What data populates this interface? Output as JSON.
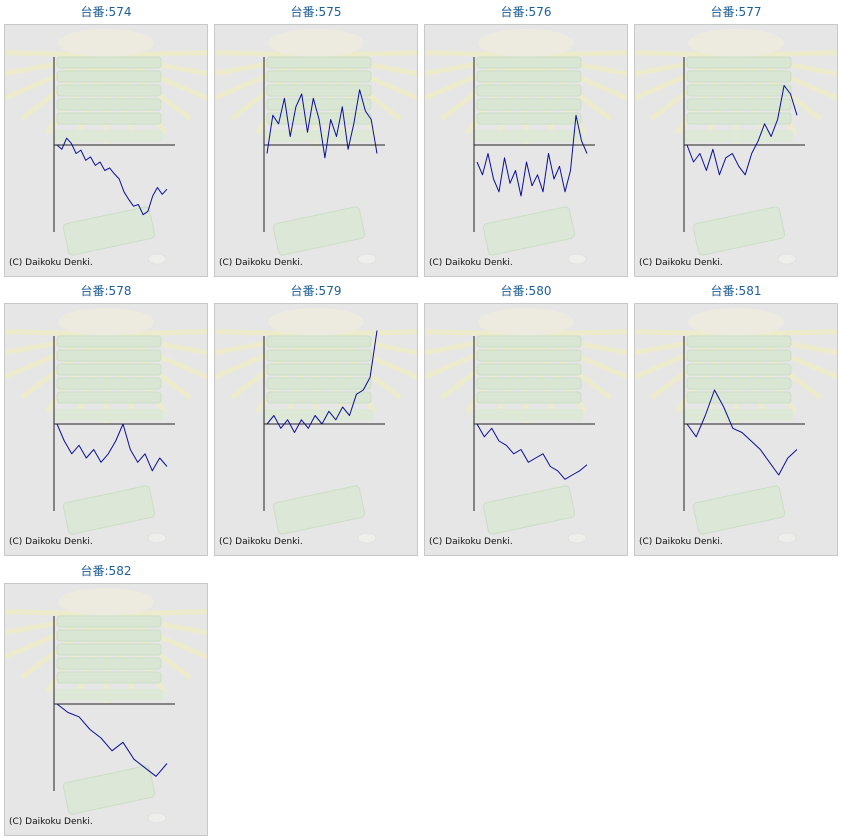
{
  "copyright": "(C) Daikoku Denki.",
  "colors": {
    "line": "#0a0f9c",
    "axis": "#222222",
    "title": "#1f5f99",
    "panel_bg": "#e6e6e6"
  },
  "chart_data": [
    {
      "type": "line",
      "title": "台番:574",
      "values": [
        0,
        -0.05,
        0.08,
        0.02,
        -0.1,
        -0.06,
        -0.18,
        -0.14,
        -0.24,
        -0.2,
        -0.3,
        -0.27,
        -0.34,
        -0.4,
        -0.55,
        -0.64,
        -0.72,
        -0.7,
        -0.82,
        -0.78,
        -0.6,
        -0.5,
        -0.58,
        -0.52
      ]
    },
    {
      "type": "line",
      "title": "台番:575",
      "values": [
        -0.1,
        0.35,
        0.25,
        0.55,
        0.1,
        0.45,
        0.6,
        0.15,
        0.55,
        0.3,
        -0.15,
        0.3,
        0.1,
        0.45,
        -0.05,
        0.25,
        0.65,
        0.4,
        0.3,
        -0.1
      ]
    },
    {
      "type": "line",
      "title": "台番:576",
      "values": [
        -0.2,
        -0.35,
        -0.1,
        -0.4,
        -0.55,
        -0.15,
        -0.45,
        -0.3,
        -0.6,
        -0.2,
        -0.48,
        -0.35,
        -0.55,
        -0.1,
        -0.4,
        -0.25,
        -0.55,
        -0.3,
        0.35,
        0.05,
        -0.1
      ]
    },
    {
      "type": "line",
      "title": "台番:577",
      "values": [
        0.0,
        -0.2,
        -0.1,
        -0.3,
        -0.05,
        -0.35,
        -0.15,
        -0.1,
        -0.25,
        -0.35,
        -0.1,
        0.05,
        0.25,
        0.1,
        0.3,
        0.7,
        0.6,
        0.35
      ]
    },
    {
      "type": "line",
      "title": "台番:578",
      "values": [
        0.0,
        -0.2,
        -0.35,
        -0.25,
        -0.4,
        -0.3,
        -0.45,
        -0.35,
        -0.2,
        0.0,
        -0.3,
        -0.45,
        -0.35,
        -0.55,
        -0.4,
        -0.5
      ]
    },
    {
      "type": "line",
      "title": "台番:579",
      "values": [
        0.0,
        0.1,
        -0.05,
        0.05,
        -0.1,
        0.05,
        -0.05,
        0.1,
        0.0,
        0.15,
        0.05,
        0.2,
        0.1,
        0.35,
        0.4,
        0.55,
        1.1
      ]
    },
    {
      "type": "line",
      "title": "台番:580",
      "values": [
        0.0,
        -0.15,
        -0.05,
        -0.2,
        -0.25,
        -0.35,
        -0.3,
        -0.45,
        -0.4,
        -0.35,
        -0.5,
        -0.55,
        -0.65,
        -0.6,
        -0.55,
        -0.48
      ]
    },
    {
      "type": "line",
      "title": "台番:581",
      "values": [
        0.0,
        -0.15,
        0.1,
        0.4,
        0.2,
        -0.05,
        -0.1,
        -0.2,
        -0.3,
        -0.45,
        -0.6,
        -0.4,
        -0.3
      ]
    },
    {
      "type": "line",
      "title": "台番:582",
      "values": [
        0.0,
        -0.1,
        -0.15,
        -0.3,
        -0.4,
        -0.55,
        -0.45,
        -0.65,
        -0.75,
        -0.85,
        -0.7
      ]
    }
  ]
}
